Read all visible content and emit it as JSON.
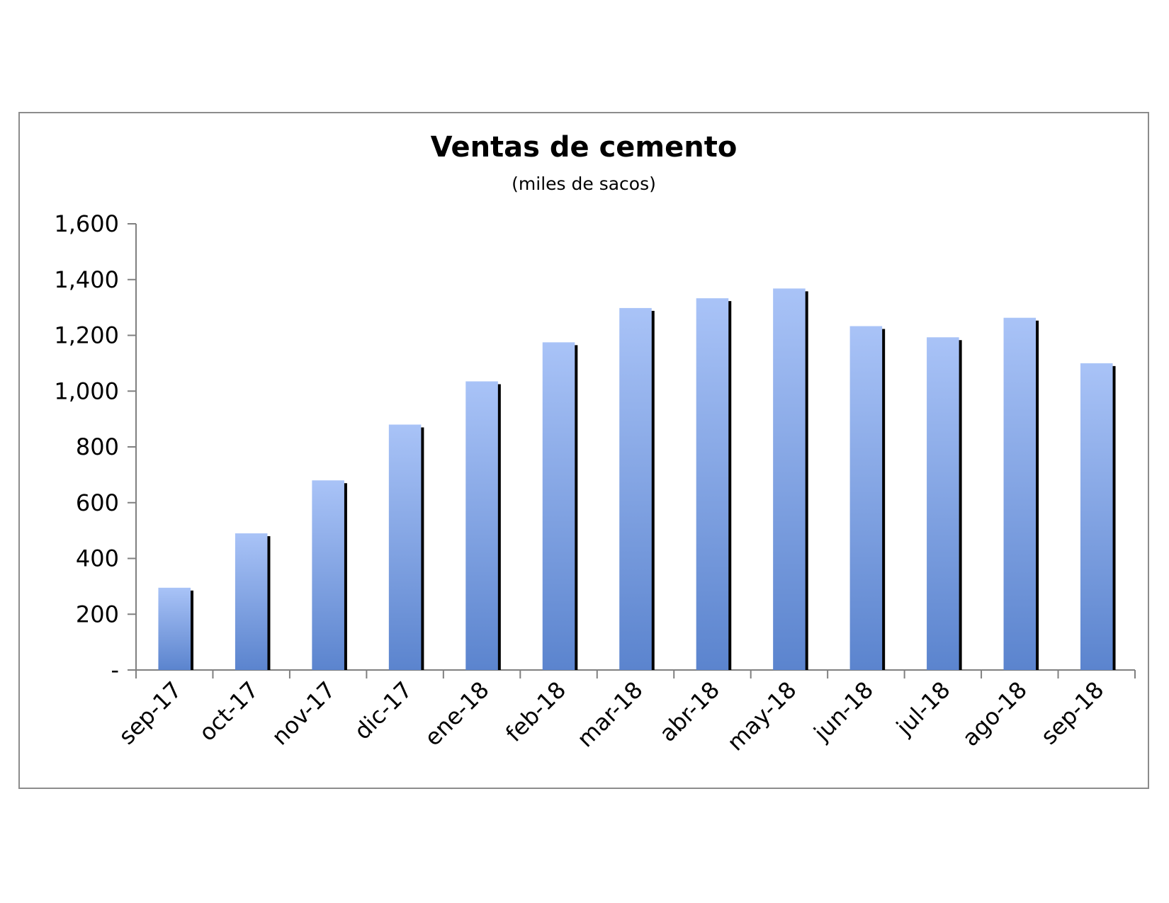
{
  "chart_data": {
    "type": "bar",
    "title": "Ventas de cemento",
    "subtitle": "(miles de sacos)",
    "xlabel": "",
    "ylabel": "",
    "categories": [
      "sep-17",
      "oct-17",
      "nov-17",
      "dic-17",
      "ene-18",
      "feb-18",
      "mar-18",
      "abr-18",
      "may-18",
      "jun-18",
      "jul-18",
      "ago-18",
      "sep-18"
    ],
    "values": [
      295,
      490,
      680,
      880,
      1035,
      1175,
      1298,
      1333,
      1368,
      1233,
      1193,
      1263,
      1100
    ],
    "ylim": [
      0,
      1600
    ],
    "yticks": [
      0,
      200,
      400,
      600,
      800,
      1000,
      1200,
      1400,
      1600
    ],
    "ytick_labels": [
      "-",
      "200",
      "400",
      "600",
      "800",
      "1,000",
      "1,200",
      "1,400",
      "1,600"
    ],
    "grid": false,
    "legend": "none",
    "colors": {
      "bar_top": "#a9c3f7",
      "bar_bottom": "#5b84ce",
      "bar_shadow": "#000000",
      "axis": "#808080"
    }
  }
}
